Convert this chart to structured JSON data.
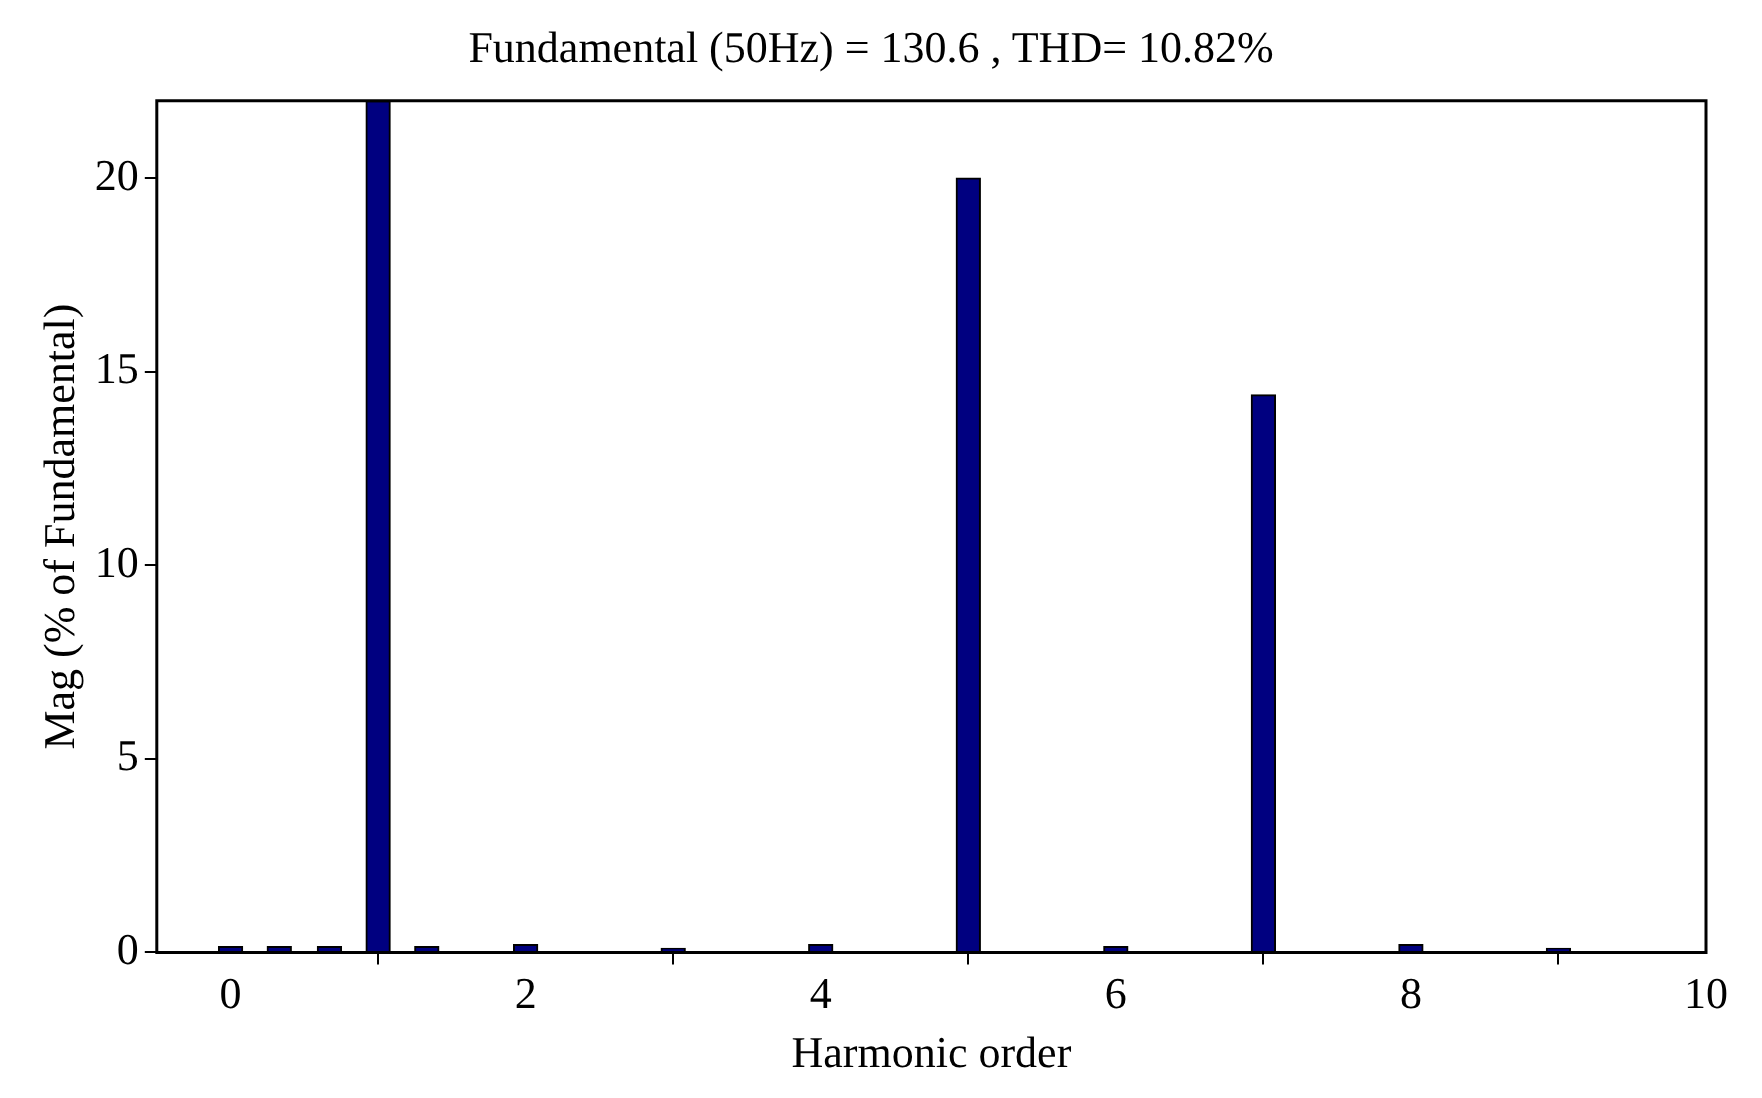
{
  "chart_data": {
    "type": "bar",
    "title": "Fundamental (50Hz) = 130.6 , THD= 10.82%",
    "xlabel": "Harmonic order",
    "ylabel": "Mag (% of Fundamental)",
    "x": [
      0,
      0.33,
      0.67,
      1,
      1.33,
      2,
      3,
      4,
      5,
      6,
      7,
      8,
      9
    ],
    "values": [
      0.15,
      0.15,
      0.15,
      22,
      0.15,
      0.2,
      0.1,
      0.2,
      20,
      0.15,
      14.4,
      0.2,
      0.1
    ],
    "color": "#000080",
    "xlim": [
      -0.5,
      10
    ],
    "xticks": [
      0,
      2,
      4,
      6,
      8,
      10
    ],
    "ylim": [
      0,
      22
    ],
    "yticks": [
      0,
      5,
      10,
      15,
      20
    ]
  }
}
